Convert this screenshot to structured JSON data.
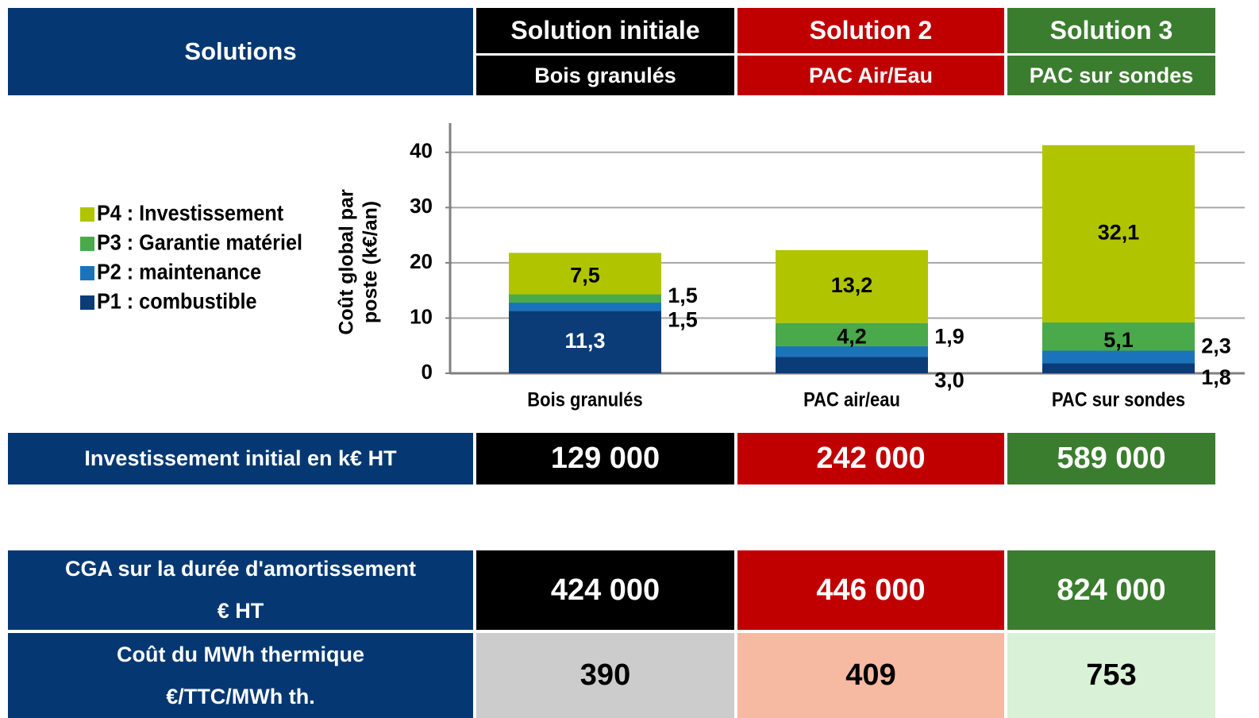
{
  "header": {
    "title": "Solutions",
    "columns": [
      {
        "name": "Solution initiale",
        "sub": "Bois granulés"
      },
      {
        "name": "Solution 2",
        "sub": "PAC Air/Eau"
      },
      {
        "name": "Solution 3",
        "sub": "PAC sur sondes"
      }
    ]
  },
  "chart_data": {
    "type": "stacked_bar",
    "ylabel": [
      "Coût global par",
      "poste (k€/an)"
    ],
    "categories": [
      "Bois granulés",
      "PAC air/eau",
      "PAC sur sondes"
    ],
    "series": [
      {
        "name": "P1 : combustible",
        "color": "#0b3c78",
        "values": [
          11.3,
          3.0,
          1.8
        ],
        "value_labels": [
          "11,3",
          "3,0",
          "1,8"
        ]
      },
      {
        "name": "P2 : maintenance",
        "color": "#1b74bb",
        "values": [
          1.5,
          1.9,
          2.3
        ],
        "value_labels": [
          "1,5",
          "1,9",
          "2,3"
        ]
      },
      {
        "name": "P3 : Garantie  matériel",
        "color": "#4aa94a",
        "values": [
          1.5,
          4.2,
          5.1
        ],
        "value_labels": [
          "1,5",
          "4,2",
          "5,1"
        ]
      },
      {
        "name": "P4 : Investissement",
        "color": "#b1c400",
        "values": [
          7.5,
          13.2,
          32.1
        ],
        "value_labels": [
          "7,5",
          "13,2",
          "32,1"
        ]
      }
    ],
    "ylim": [
      0,
      45
    ],
    "yticks": [
      0,
      10,
      20,
      30,
      40
    ],
    "grid": true
  },
  "rows": [
    {
      "label": [
        "Investissement initial en k€ HT"
      ],
      "values": [
        "129 000",
        "242 000",
        "589 000"
      ]
    },
    {
      "label": [
        "CGA sur la durée d'amortissement",
        "€ HT"
      ],
      "values": [
        "424 000",
        "446 000",
        "824 000"
      ]
    },
    {
      "label": [
        "Coût du MWh thermique",
        "€/TTC/MWh th."
      ],
      "values": [
        390,
        409,
        753
      ]
    }
  ]
}
